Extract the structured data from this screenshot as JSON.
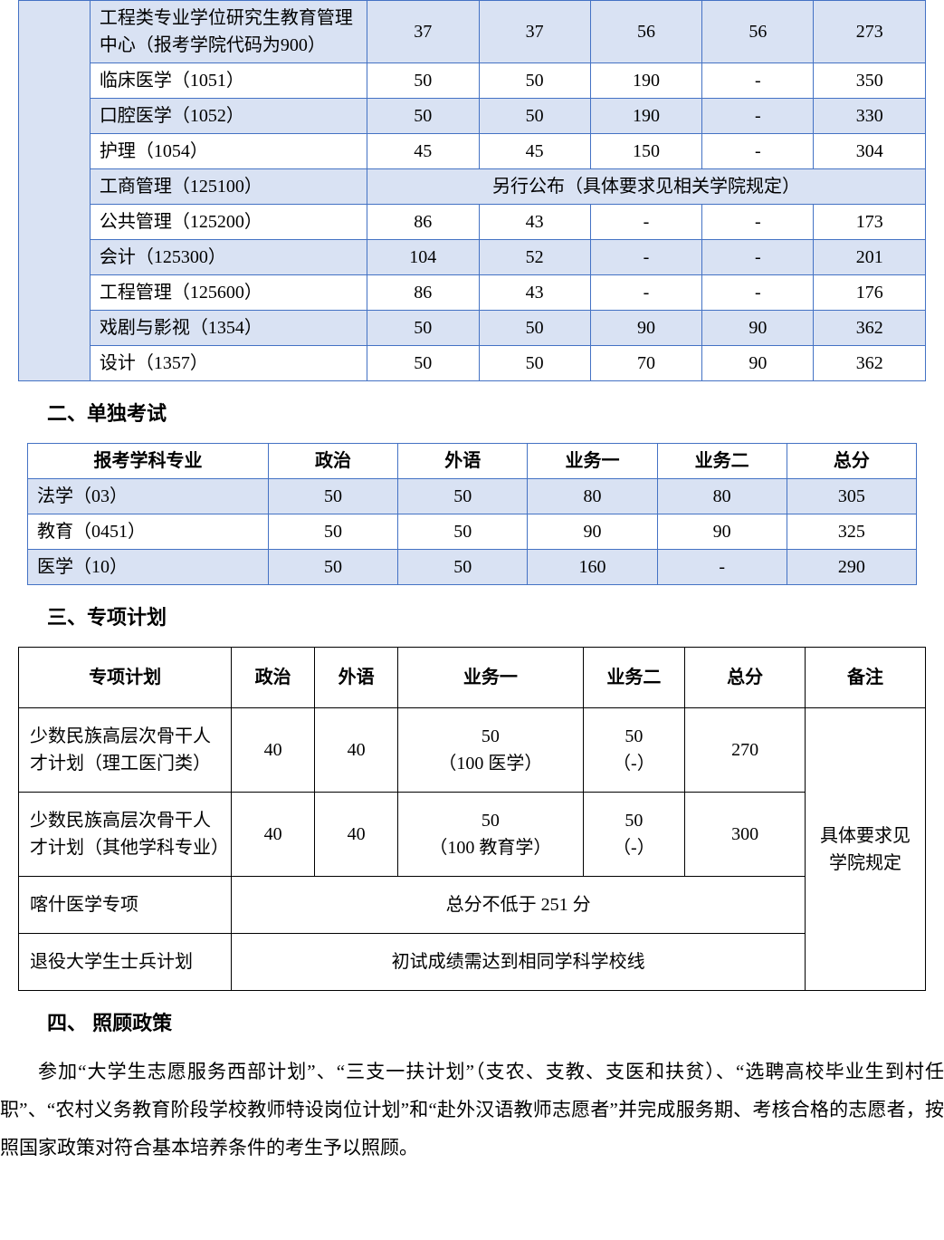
{
  "table1": {
    "border_color": "#4472c4",
    "shaded_bg": "#d9e2f3",
    "rows": [
      {
        "shaded": true,
        "label": "工程类专业学位研究生教育管理中心（报考学院代码为900）",
        "c1": "37",
        "c2": "37",
        "c3": "56",
        "c4": "56",
        "c5": "273"
      },
      {
        "shaded": false,
        "label": "临床医学（1051）",
        "c1": "50",
        "c2": "50",
        "c3": "190",
        "c4": "-",
        "c5": "350"
      },
      {
        "shaded": true,
        "label": "口腔医学（1052）",
        "c1": "50",
        "c2": "50",
        "c3": "190",
        "c4": "-",
        "c5": "330"
      },
      {
        "shaded": false,
        "label": "护理（1054）",
        "c1": "45",
        "c2": "45",
        "c3": "150",
        "c4": "-",
        "c5": "304"
      },
      {
        "shaded": true,
        "label": "工商管理（125100）",
        "merged": "另行公布（具体要求见相关学院规定）"
      },
      {
        "shaded": false,
        "label": "公共管理（125200）",
        "c1": "86",
        "c2": "43",
        "c3": "-",
        "c4": "-",
        "c5": "173"
      },
      {
        "shaded": true,
        "label": "会计（125300）",
        "c1": "104",
        "c2": "52",
        "c3": "-",
        "c4": "-",
        "c5": "201"
      },
      {
        "shaded": false,
        "label": "工程管理（125600）",
        "c1": "86",
        "c2": "43",
        "c3": "-",
        "c4": "-",
        "c5": "176"
      },
      {
        "shaded": true,
        "label": "戏剧与影视（1354）",
        "c1": "50",
        "c2": "50",
        "c3": "90",
        "c4": "90",
        "c5": "362"
      },
      {
        "shaded": false,
        "label": "设计（1357）",
        "c1": "50",
        "c2": "50",
        "c3": "70",
        "c4": "90",
        "c5": "362"
      }
    ]
  },
  "section2": {
    "heading": "二、单独考试"
  },
  "table2": {
    "border_color": "#4472c4",
    "shaded_bg": "#d9e2f3",
    "headers": [
      "报考学科专业",
      "政治",
      "外语",
      "业务一",
      "业务二",
      "总分"
    ],
    "rows": [
      {
        "shaded": true,
        "label": "法学（03）",
        "c1": "50",
        "c2": "50",
        "c3": "80",
        "c4": "80",
        "c5": "305"
      },
      {
        "shaded": false,
        "label": "教育（0451）",
        "c1": "50",
        "c2": "50",
        "c3": "90",
        "c4": "90",
        "c5": "325"
      },
      {
        "shaded": true,
        "label": "医学（10）",
        "c1": "50",
        "c2": "50",
        "c3": "160",
        "c4": "-",
        "c5": "290"
      }
    ]
  },
  "section3": {
    "heading": "三、专项计划"
  },
  "table3": {
    "border_color": "#000000",
    "headers": [
      "专项计划",
      "政治",
      "外语",
      "业务一",
      "业务二",
      "总分",
      "备注"
    ],
    "note": "具体要求见学院规定",
    "rows": [
      {
        "label": "少数民族高层次骨干人才计划（理工医门类）",
        "c1": "40",
        "c2": "40",
        "c3_l1": "50",
        "c3_l2": "（100 医学）",
        "c4_l1": "50",
        "c4_l2": "（-）",
        "c5": "270"
      },
      {
        "label": "少数民族高层次骨干人才计划（其他学科专业）",
        "c1": "40",
        "c2": "40",
        "c3_l1": "50",
        "c3_l2": "（100 教育学）",
        "c4_l1": "50",
        "c4_l2": "（-）",
        "c5": "300"
      },
      {
        "label": "喀什医学专项",
        "merged": "总分不低于 251 分"
      },
      {
        "label": "退役大学生士兵计划",
        "merged": "初试成绩需达到相同学科学校线"
      }
    ]
  },
  "section4": {
    "heading": "四、  照顾政策",
    "paragraph": "参加“大学生志愿服务西部计划”、“三支一扶计划”（支农、支教、支医和扶贫）、“选聘高校毕业生到村任职”、“农村义务教育阶段学校教师特设岗位计划”和“赴外汉语教师志愿者”并完成服务期、考核合格的志愿者，按照国家政策对符合基本培养条件的考生予以照顾。"
  }
}
